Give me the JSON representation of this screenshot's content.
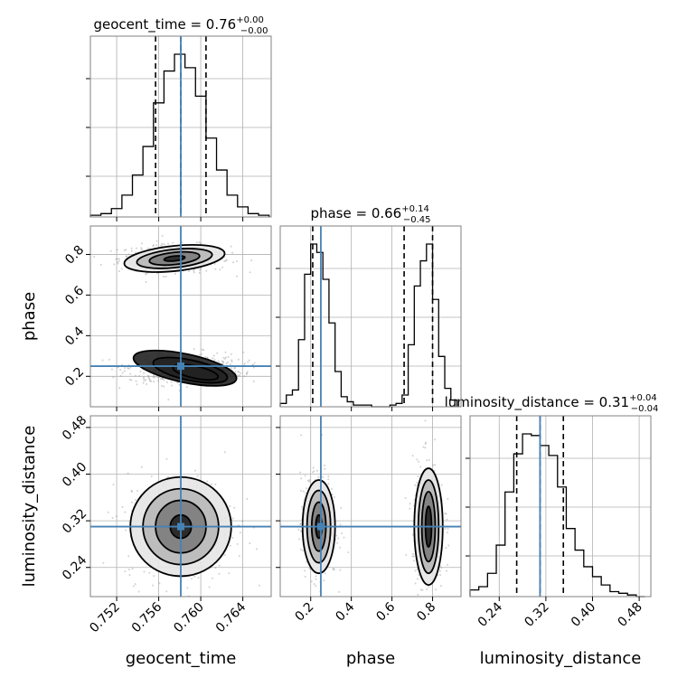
{
  "chart_data": {
    "type": "corner",
    "parameters": [
      "geocent_time",
      "phase",
      "luminosity_distance"
    ],
    "truths": {
      "geocent_time": 0.7581,
      "phase": 0.25,
      "luminosity_distance": 0.31
    },
    "titles": {
      "geocent_time": {
        "main": "geocent_time = 0.76",
        "sup": "+0.00",
        "sub": "−0.00"
      },
      "phase": {
        "main": "phase = 0.66",
        "sup": "+0.14",
        "sub": "−0.45"
      },
      "luminosity_distance": {
        "main": "luminosity_distance = 0.31",
        "sup": "+0.04",
        "sub": "−0.04"
      }
    },
    "quantiles": {
      "geocent_time": [
        0.7557,
        0.7581,
        0.7605
      ],
      "phase": [
        0.21,
        0.66,
        0.8
      ],
      "luminosity_distance": [
        0.27,
        0.31,
        0.35
      ]
    },
    "ranges": {
      "geocent_time": [
        0.7495,
        0.7667
      ],
      "phase": [
        0.05,
        0.94
      ],
      "luminosity_distance": [
        0.19,
        0.5
      ]
    },
    "ticks": {
      "geocent_time": [
        "0.752",
        "0.756",
        "0.760",
        "0.764"
      ],
      "phase": [
        "0.2",
        "0.4",
        "0.6",
        "0.8"
      ],
      "luminosity_distance": [
        "0.24",
        "0.32",
        "0.40",
        "0.48"
      ]
    },
    "xlabels": [
      "geocent_time",
      "phase",
      "luminosity_distance"
    ],
    "ylabels": [
      "phase",
      "luminosity_distance"
    ],
    "histograms": {
      "geocent_time": {
        "edges": [
          0.7495,
          0.7505,
          0.7515,
          0.7525,
          0.7535,
          0.7545,
          0.7555,
          0.7565,
          0.7575,
          0.7585,
          0.7595,
          0.7605,
          0.7615,
          0.7625,
          0.7635,
          0.7645,
          0.7655,
          0.7665
        ],
        "counts": [
          1,
          2,
          5,
          13,
          25,
          42,
          68,
          87,
          97,
          89,
          72,
          47,
          28,
          13,
          6,
          2,
          1
        ]
      },
      "phase": {
        "edges": [
          0.05,
          0.08,
          0.11,
          0.14,
          0.17,
          0.2,
          0.23,
          0.26,
          0.29,
          0.32,
          0.35,
          0.38,
          0.41,
          0.44,
          0.47,
          0.5,
          0.53,
          0.56,
          0.59,
          0.62,
          0.65,
          0.68,
          0.71,
          0.74,
          0.77,
          0.8,
          0.83,
          0.86,
          0.89,
          0.92
        ],
        "counts": [
          2,
          7,
          10,
          40,
          79,
          97,
          92,
          76,
          50,
          21,
          6,
          3,
          1,
          1,
          1,
          0,
          0,
          0,
          1,
          2,
          7,
          37,
          72,
          87,
          97,
          64,
          30,
          11,
          4
        ]
      },
      "luminosity_distance": {
        "edges": [
          0.19,
          0.205,
          0.22,
          0.235,
          0.25,
          0.265,
          0.28,
          0.295,
          0.31,
          0.325,
          0.34,
          0.355,
          0.37,
          0.385,
          0.4,
          0.415,
          0.43,
          0.445,
          0.46,
          0.475,
          0.49
        ],
        "counts": [
          4,
          6,
          14,
          31,
          63,
          86,
          98,
          97,
          91,
          85,
          66,
          41,
          28,
          18,
          12,
          7,
          3,
          2,
          1,
          0
        ]
      }
    },
    "contours_2d": {
      "phase_vs_geocent_time": [
        {
          "cx": 0.7575,
          "cy": 0.78,
          "rx": 0.0048,
          "ry": 0.062,
          "rot": -6
        },
        {
          "cx": 0.7575,
          "cy": 0.78,
          "rx": 0.0036,
          "ry": 0.045,
          "rot": -6
        },
        {
          "cx": 0.7575,
          "cy": 0.78,
          "rx": 0.0024,
          "ry": 0.03,
          "rot": -6
        },
        {
          "cx": 0.7575,
          "cy": 0.78,
          "rx": 0.001,
          "ry": 0.012,
          "rot": -6
        },
        {
          "cx": 0.7585,
          "cy": 0.24,
          "rx": 0.005,
          "ry": 0.07,
          "rot": 12
        },
        {
          "cx": 0.759,
          "cy": 0.23,
          "rx": 0.0036,
          "ry": 0.05,
          "rot": 12
        },
        {
          "cx": 0.7595,
          "cy": 0.22,
          "rx": 0.0022,
          "ry": 0.03,
          "rot": 12
        }
      ],
      "luminosity_distance_vs_geocent_time": [
        {
          "cx": 0.7581,
          "cy": 0.31,
          "rx": 0.0048,
          "ry": 0.085,
          "rot": 0
        },
        {
          "cx": 0.7581,
          "cy": 0.31,
          "rx": 0.0036,
          "ry": 0.065,
          "rot": 0
        },
        {
          "cx": 0.7581,
          "cy": 0.31,
          "rx": 0.0024,
          "ry": 0.045,
          "rot": 0
        },
        {
          "cx": 0.7581,
          "cy": 0.31,
          "rx": 0.001,
          "ry": 0.02,
          "rot": 0
        }
      ],
      "luminosity_distance_vs_phase": [
        {
          "cx": 0.24,
          "cy": 0.31,
          "rx": 0.08,
          "ry": 0.08,
          "rot": 0
        },
        {
          "cx": 0.24,
          "cy": 0.31,
          "rx": 0.058,
          "ry": 0.062,
          "rot": 0
        },
        {
          "cx": 0.24,
          "cy": 0.31,
          "rx": 0.035,
          "ry": 0.042,
          "rot": 0
        },
        {
          "cx": 0.24,
          "cy": 0.31,
          "rx": 0.015,
          "ry": 0.02,
          "rot": 0
        },
        {
          "cx": 0.78,
          "cy": 0.31,
          "rx": 0.07,
          "ry": 0.1,
          "rot": 0
        },
        {
          "cx": 0.78,
          "cy": 0.31,
          "rx": 0.05,
          "ry": 0.08,
          "rot": 0
        },
        {
          "cx": 0.78,
          "cy": 0.31,
          "rx": 0.033,
          "ry": 0.06,
          "rot": 0
        },
        {
          "cx": 0.78,
          "cy": 0.31,
          "rx": 0.015,
          "ry": 0.035,
          "rot": 0
        }
      ]
    },
    "colors": {
      "truth": "#4682b4",
      "hist": "#000000",
      "quantile": "#000000",
      "grid": "#b0b0b0",
      "points": "#7a7a7a"
    },
    "grid": true
  }
}
